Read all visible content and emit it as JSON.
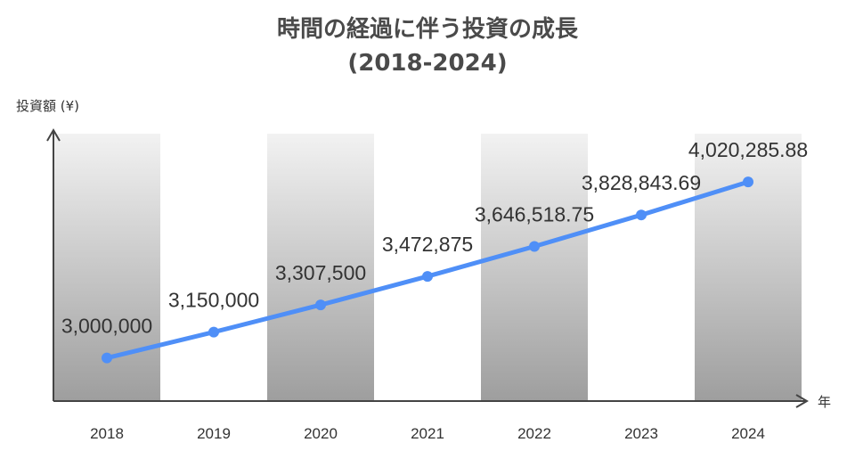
{
  "chart_data": {
    "type": "line",
    "title": "時間の経過に伴う投資の成長",
    "subtitle": "(2018-2024)",
    "ylabel": "投資額 (¥)",
    "xlabel": "年",
    "categories": [
      "2018",
      "2019",
      "2020",
      "2021",
      "2022",
      "2023",
      "2024"
    ],
    "values": [
      3000000,
      3150000,
      3307500,
      3472875,
      3646518.75,
      3828843.69,
      4020285.88
    ],
    "value_labels": [
      "3,000,000",
      "3,150,000",
      "3,307,500",
      "3,472,875",
      "3,646,518.75",
      "3,828,843.69",
      "4,020,285.88"
    ],
    "ylim": [
      2750000,
      4300000
    ],
    "grid": false,
    "line_color": "#4f8ff7",
    "band_colors": [
      "#f2f2f2",
      "#9e9e9e"
    ]
  }
}
